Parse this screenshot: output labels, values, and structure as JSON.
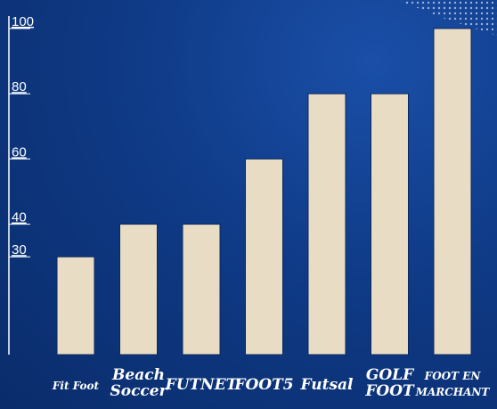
{
  "chart_data": {
    "type": "bar",
    "categories": [
      [
        "Fit Foot"
      ],
      [
        "Beach",
        "Soccer"
      ],
      [
        "FUTNET"
      ],
      [
        "FOOT5"
      ],
      [
        "Futsal"
      ],
      [
        "GOLF",
        "FOOT"
      ],
      [
        "FOOT EN",
        "MARCHANT"
      ]
    ],
    "values": [
      30,
      40,
      40,
      60,
      80,
      80,
      100
    ],
    "yticks": [
      30,
      40,
      60,
      80,
      100
    ],
    "ylim": [
      0,
      100
    ],
    "title": "",
    "xlabel": "",
    "ylabel": "",
    "grid": false,
    "colors": {
      "bar": "#e8dcc4",
      "bar_stroke": "#0b2a5e",
      "axis": "#ffffff",
      "text": "#ffffff",
      "background": "#0f3a86"
    }
  }
}
